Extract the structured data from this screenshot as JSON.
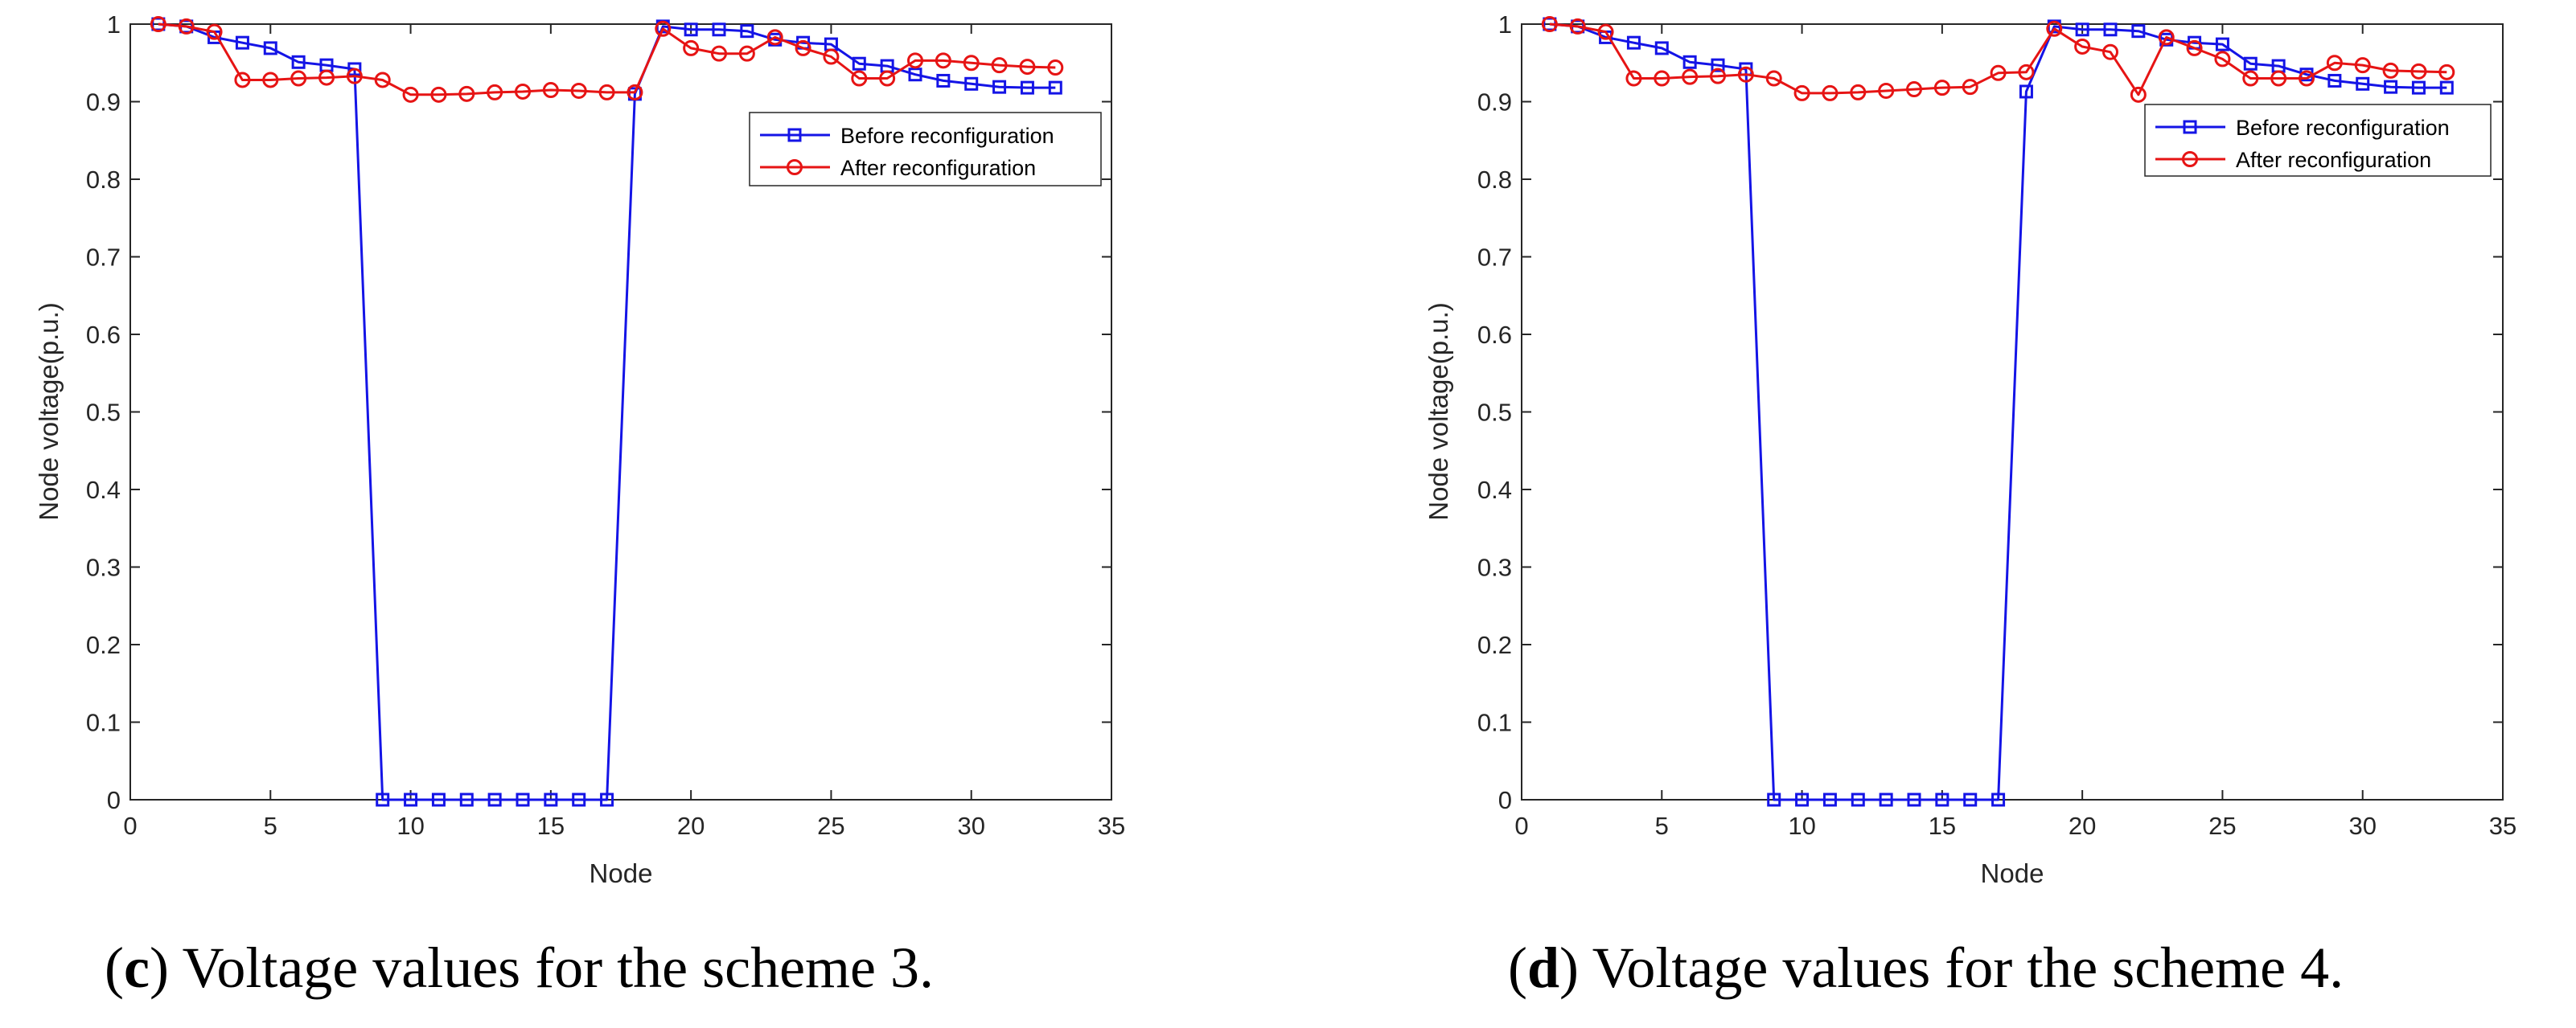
{
  "colors": {
    "before": "#1414e6",
    "after": "#e61414",
    "axis": "#262626"
  },
  "chart_data": [
    {
      "type": "line",
      "caption": {
        "open": "(",
        "letter": "c",
        "rest": ") Voltage values for the scheme 3."
      },
      "xlabel": "Node",
      "ylabel": "Node voltage(p.u.)",
      "xlim": [
        0,
        35
      ],
      "ylim": [
        0,
        1
      ],
      "xticks": [
        0,
        5,
        10,
        15,
        20,
        25,
        30,
        35
      ],
      "yticks": [
        0,
        0.1,
        0.2,
        0.3,
        0.4,
        0.5,
        0.6,
        0.7,
        0.8,
        0.9,
        1
      ],
      "xtick_labels": [
        "0",
        "5",
        "10",
        "15",
        "20",
        "25",
        "30",
        "35"
      ],
      "ytick_labels": [
        "0",
        "0.1",
        "0.2",
        "0.3",
        "0.4",
        "0.5",
        "0.6",
        "0.7",
        "0.8",
        "0.9",
        "1"
      ],
      "grid": false,
      "legend_position": "top-right",
      "x": [
        1,
        2,
        3,
        4,
        5,
        6,
        7,
        8,
        9,
        10,
        11,
        12,
        13,
        14,
        15,
        16,
        17,
        18,
        19,
        20,
        21,
        22,
        23,
        24,
        25,
        26,
        27,
        28,
        29,
        30,
        31,
        32,
        33
      ],
      "series": [
        {
          "name": "Before reconfiguration",
          "marker": "square",
          "color": "#1414e6",
          "values": [
            1,
            0.997,
            0.983,
            0.976,
            0.969,
            0.951,
            0.947,
            0.942,
            0,
            0,
            0,
            0,
            0,
            0,
            0,
            0,
            0,
            0.91,
            0.997,
            0.993,
            0.993,
            0.991,
            0.98,
            0.976,
            0.974,
            0.949,
            0.946,
            0.935,
            0.927,
            0.923,
            0.919,
            0.918,
            0.918
          ]
        },
        {
          "name": "After reconfiguration",
          "marker": "circle",
          "color": "#e61414",
          "values": [
            1,
            0.997,
            0.99,
            0.928,
            0.928,
            0.93,
            0.931,
            0.933,
            0.928,
            0.909,
            0.909,
            0.91,
            0.912,
            0.913,
            0.915,
            0.914,
            0.912,
            0.912,
            0.994,
            0.969,
            0.962,
            0.962,
            0.983,
            0.969,
            0.958,
            0.93,
            0.93,
            0.953,
            0.953,
            0.95,
            0.947,
            0.945,
            0.944
          ]
        }
      ]
    },
    {
      "type": "line",
      "caption": {
        "open": "(",
        "letter": "d",
        "rest": ") Voltage values for the scheme 4."
      },
      "xlabel": "Node",
      "ylabel": "Node voltage(p.u.)",
      "xlim": [
        0,
        35
      ],
      "ylim": [
        0,
        1
      ],
      "xticks": [
        0,
        5,
        10,
        15,
        20,
        25,
        30,
        35
      ],
      "yticks": [
        0,
        0.1,
        0.2,
        0.3,
        0.4,
        0.5,
        0.6,
        0.7,
        0.8,
        0.9,
        1
      ],
      "xtick_labels": [
        "0",
        "5",
        "10",
        "15",
        "20",
        "25",
        "30",
        "35"
      ],
      "ytick_labels": [
        "0",
        "0.1",
        "0.2",
        "0.3",
        "0.4",
        "0.5",
        "0.6",
        "0.7",
        "0.8",
        "0.9",
        "1"
      ],
      "grid": false,
      "legend_position": "top-right",
      "x": [
        1,
        2,
        3,
        4,
        5,
        6,
        7,
        8,
        9,
        10,
        11,
        12,
        13,
        14,
        15,
        16,
        17,
        18,
        19,
        20,
        21,
        22,
        23,
        24,
        25,
        26,
        27,
        28,
        29,
        30,
        31,
        32,
        33
      ],
      "series": [
        {
          "name": "Before reconfiguration",
          "marker": "square",
          "color": "#1414e6",
          "values": [
            1,
            0.997,
            0.983,
            0.976,
            0.969,
            0.951,
            0.947,
            0.942,
            0,
            0,
            0,
            0,
            0,
            0,
            0,
            0,
            0,
            0.913,
            0.997,
            0.993,
            0.993,
            0.991,
            0.98,
            0.976,
            0.974,
            0.949,
            0.946,
            0.935,
            0.927,
            0.923,
            0.919,
            0.918,
            0.918
          ]
        },
        {
          "name": "After reconfiguration",
          "marker": "circle",
          "color": "#e61414",
          "values": [
            1,
            0.997,
            0.99,
            0.93,
            0.93,
            0.932,
            0.933,
            0.935,
            0.93,
            0.911,
            0.911,
            0.912,
            0.914,
            0.916,
            0.918,
            0.919,
            0.937,
            0.938,
            0.994,
            0.971,
            0.964,
            0.909,
            0.983,
            0.969,
            0.955,
            0.93,
            0.93,
            0.93,
            0.95,
            0.947,
            0.94,
            0.939,
            0.938
          ]
        }
      ]
    }
  ]
}
